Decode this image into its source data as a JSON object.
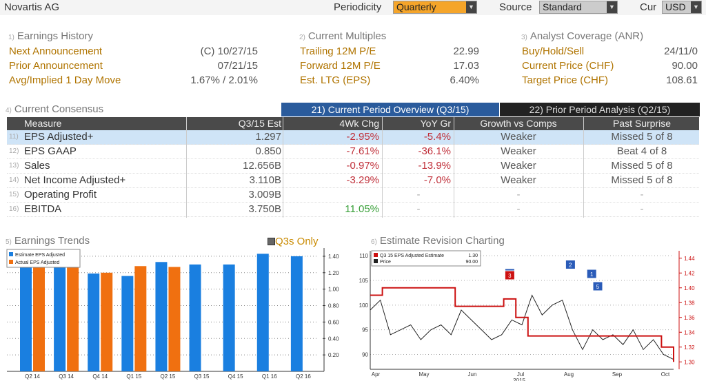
{
  "header": {
    "company": "Novartis AG",
    "periodicity_label": "Periodicity",
    "periodicity_value": "Quarterly",
    "source_label": "Source",
    "source_value": "Standard",
    "cur_label": "Cur",
    "cur_value": "USD"
  },
  "sections": {
    "earnings_history": {
      "num": "1)",
      "title": "Earnings History",
      "rows": [
        {
          "label": "Next Announcement",
          "value": "(C)  10/27/15"
        },
        {
          "label": "Prior Announcement",
          "value": "07/21/15"
        },
        {
          "label": "Avg/Implied 1 Day Move",
          "value": "1.67% / 2.01%"
        }
      ]
    },
    "current_multiples": {
      "num": "2)",
      "title": "Current Multiples",
      "rows": [
        {
          "label": "Trailing 12M P/E",
          "value": "22.99"
        },
        {
          "label": "Forward 12M P/E",
          "value": "17.03"
        },
        {
          "label": "Est. LTG (EPS)",
          "value": "6.40%"
        }
      ]
    },
    "analyst_coverage": {
      "num": "3)",
      "title": "Analyst Coverage (ANR)",
      "rows": [
        {
          "label": "Buy/Hold/Sell",
          "value": "24/11/0"
        },
        {
          "label": "Current Price (CHF)",
          "value": "90.00"
        },
        {
          "label": "Target Price (CHF)",
          "value": "108.61"
        }
      ]
    }
  },
  "consensus": {
    "num": "4)",
    "title": "Current Consensus",
    "tab_current": "21) Current Period Overview (Q3/15)",
    "tab_prior": "22) Prior Period Analysis (Q2/15)",
    "columns": [
      "Measure",
      "Q3/15 Est",
      "4Wk Chg",
      "YoY Gr",
      "Growth vs Comps",
      "Past Surprise"
    ],
    "rows": [
      {
        "num": "11)",
        "measure": "EPS Adjusted+",
        "est": "1.297",
        "chg": "-2.95%",
        "yoy": "-5.4%",
        "growth": "Weaker",
        "surprise": "Missed 5 of 8"
      },
      {
        "num": "12)",
        "measure": "EPS GAAP",
        "est": "0.850",
        "chg": "-7.61%",
        "yoy": "-36.1%",
        "growth": "Weaker",
        "surprise": "Beat 4 of 8"
      },
      {
        "num": "13)",
        "measure": "Sales",
        "est": "12.656B",
        "chg": "-0.97%",
        "yoy": "-13.9%",
        "growth": "Weaker",
        "surprise": "Missed 5 of 8"
      },
      {
        "num": "14)",
        "measure": "Net Income Adjusted+",
        "est": "3.110B",
        "chg": "-3.29%",
        "yoy": "-7.0%",
        "growth": "Weaker",
        "surprise": "Missed 5 of 8"
      },
      {
        "num": "15)",
        "measure": "Operating Profit",
        "est": "3.009B",
        "chg": "",
        "yoy": "-",
        "growth": "-",
        "surprise": "-"
      },
      {
        "num": "16)",
        "measure": "EBITDA",
        "est": "3.750B",
        "chg": "11.05%",
        "yoy": "-",
        "growth": "-",
        "surprise": "-"
      }
    ]
  },
  "earnings_trends": {
    "num": "5)",
    "title": "Earnings Trends",
    "q3s_only": "Q3s Only",
    "colors": {
      "estimate": "#1a7fe0",
      "actual": "#f07010"
    },
    "chart_data": {
      "type": "bar",
      "categories": [
        "Q2 14",
        "Q3 14",
        "Q4 14",
        "Q1 15",
        "Q2 15",
        "Q3 15",
        "Q4 15",
        "Q1 16",
        "Q2 16"
      ],
      "series": [
        {
          "name": "Estimate EPS Adjusted",
          "values": [
            1.36,
            1.35,
            1.19,
            1.16,
            1.33,
            1.3,
            1.3,
            1.43,
            1.4
          ]
        },
        {
          "name": "Actual EPS Adjusted",
          "values": [
            1.36,
            1.36,
            1.2,
            1.28,
            1.27,
            null,
            null,
            null,
            null
          ]
        }
      ],
      "yticks": [
        "0.20",
        "0.40",
        "0.60",
        "0.80",
        "1.00",
        "1.20",
        "1.40"
      ],
      "ylim": [
        0,
        1.5
      ]
    }
  },
  "revision": {
    "num": "6)",
    "title": "Estimate Revision Charting",
    "legend_est": "Q3 15 EPS Adjusted Estimate",
    "legend_est_val": "1.30",
    "legend_price": "Price",
    "legend_price_val": "90.00",
    "colors": {
      "estimate": "#cc1111",
      "price": "#222222",
      "marker": "#2a5bb8"
    },
    "chart_data": {
      "type": "line",
      "x_labels": [
        "Apr",
        "May",
        "Jun",
        "Jul",
        "Aug",
        "Sep",
        "Oct"
      ],
      "year_label": "2015",
      "left_ticks": [
        "90",
        "95",
        "100",
        "105",
        "110"
      ],
      "right_ticks": [
        "1.30",
        "1.32",
        "1.34",
        "1.36",
        "1.38",
        "1.40",
        "1.42",
        "1.44"
      ],
      "markers": [
        "2",
        "5",
        "4",
        "3",
        "2",
        "1",
        "5"
      ],
      "series": [
        {
          "name": "Q3 15 EPS Adjusted Estimate",
          "values": [
            1.39,
            1.4,
            1.4,
            1.4,
            1.4,
            1.4,
            1.4,
            1.375,
            1.375,
            1.375,
            1.375,
            1.385,
            1.36,
            1.335,
            1.335,
            1.335,
            1.335,
            1.335,
            1.335,
            1.335,
            1.335,
            1.335,
            1.335,
            1.335,
            1.32,
            1.3
          ]
        },
        {
          "name": "Price",
          "values": [
            99,
            101,
            94,
            95,
            96,
            93,
            95,
            96,
            94,
            99,
            97,
            95,
            93,
            94,
            97,
            96,
            102,
            98,
            100,
            101,
            95,
            91,
            95,
            93,
            94,
            92,
            95,
            91,
            93,
            90,
            89
          ]
        }
      ]
    }
  }
}
